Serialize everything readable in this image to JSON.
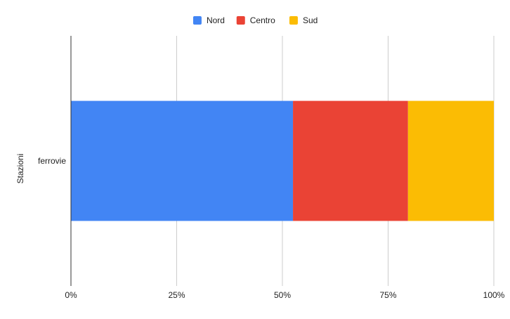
{
  "chart_data": {
    "type": "bar",
    "orientation": "horizontal",
    "stacked": "percent",
    "categories": [
      "ferrovie"
    ],
    "series": [
      {
        "name": "Nord",
        "values": [
          52.5
        ],
        "color": "#4285f4"
      },
      {
        "name": "Centro",
        "values": [
          27.2
        ],
        "color": "#ea4335"
      },
      {
        "name": "Sud",
        "values": [
          20.3
        ],
        "color": "#fbbc04"
      }
    ],
    "xlim": [
      0,
      100
    ],
    "xticks": [
      "0%",
      "25%",
      "50%",
      "75%",
      "100%"
    ],
    "xlabel": "",
    "ylabel": "Stazioni",
    "title": "",
    "legend": "top-center",
    "grid": true
  }
}
